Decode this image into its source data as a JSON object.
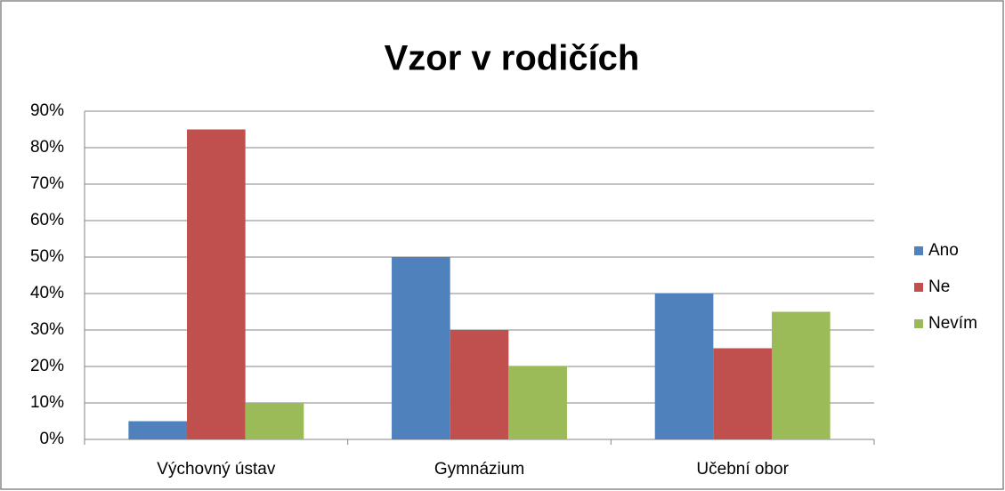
{
  "chart_data": {
    "type": "bar",
    "title": "Vzor v rodičích",
    "categories": [
      "Výchovný ústav",
      "Gymnázium",
      "Učební obor"
    ],
    "series": [
      {
        "name": "Ano",
        "color": "#4f81bd",
        "values": [
          5,
          50,
          40
        ]
      },
      {
        "name": "Ne",
        "color": "#c0504d",
        "values": [
          85,
          30,
          25
        ]
      },
      {
        "name": "Nevím",
        "color": "#9bbb59",
        "values": [
          10,
          20,
          35
        ]
      }
    ],
    "ylim": [
      0,
      90
    ],
    "yticks": [
      {
        "value": 0,
        "label": "0%"
      },
      {
        "value": 10,
        "label": "10%"
      },
      {
        "value": 20,
        "label": "20%"
      },
      {
        "value": 30,
        "label": "30%"
      },
      {
        "value": 40,
        "label": "40%"
      },
      {
        "value": 50,
        "label": "50%"
      },
      {
        "value": 60,
        "label": "60%"
      },
      {
        "value": 70,
        "label": "70%"
      },
      {
        "value": 80,
        "label": "80%"
      },
      {
        "value": 90,
        "label": "90%"
      }
    ],
    "grid": true,
    "legend": "right"
  }
}
